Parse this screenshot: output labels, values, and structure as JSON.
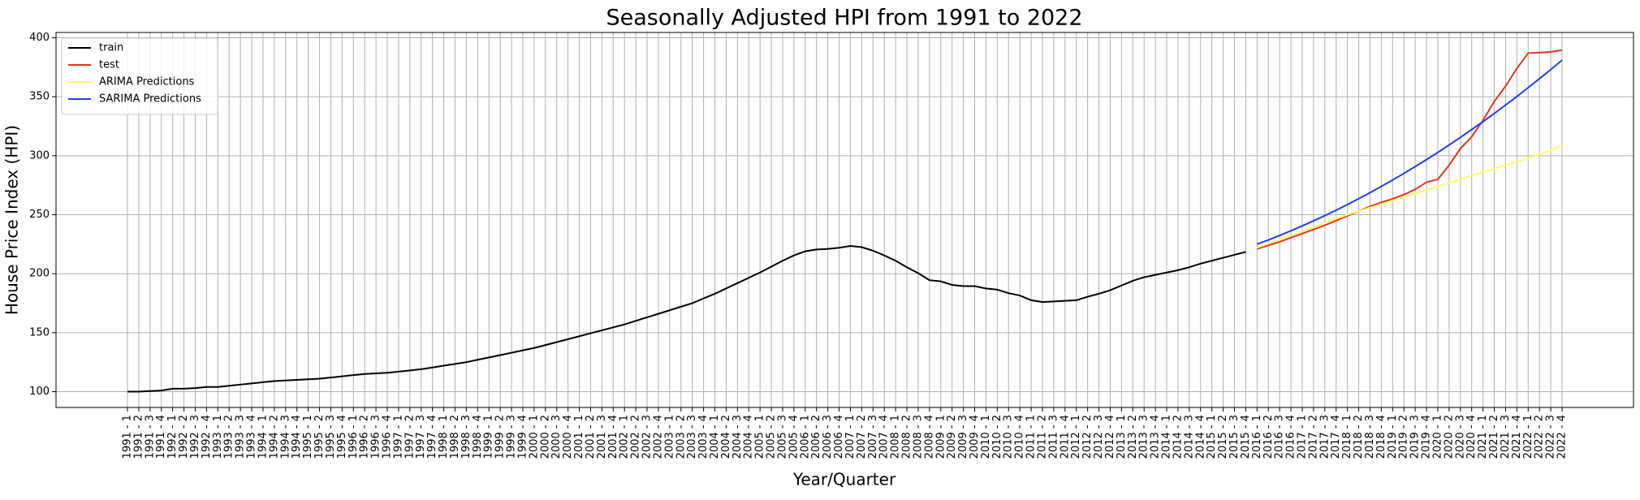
{
  "chart_data": {
    "type": "line",
    "title": "Seasonally Adjusted HPI from 1991 to 2022",
    "x_label": "Year/Quarter",
    "y_label": "House Price Index (HPI)",
    "categories": [
      "1991 - 1",
      "1991 - 2",
      "1991 - 3",
      "1991 - 4",
      "1992 - 1",
      "1992 - 2",
      "1992 - 3",
      "1992 - 4",
      "1993 - 1",
      "1993 - 2",
      "1993 - 3",
      "1993 - 4",
      "1994 - 1",
      "1994 - 2",
      "1994 - 3",
      "1994 - 4",
      "1995 - 1",
      "1995 - 2",
      "1995 - 3",
      "1995 - 4",
      "1996 - 1",
      "1996 - 2",
      "1996 - 3",
      "1996 - 4",
      "1997 - 1",
      "1997 - 2",
      "1997 - 3",
      "1997 - 4",
      "1998 - 1",
      "1998 - 2",
      "1998 - 3",
      "1998 - 4",
      "1999 - 1",
      "1999 - 2",
      "1999 - 3",
      "1999 - 4",
      "2000 - 1",
      "2000 - 2",
      "2000 - 3",
      "2000 - 4",
      "2001 - 1",
      "2001 - 2",
      "2001 - 3",
      "2001 - 4",
      "2002 - 1",
      "2002 - 2",
      "2002 - 3",
      "2002 - 4",
      "2003 - 1",
      "2003 - 2",
      "2003 - 3",
      "2003 - 4",
      "2004 - 1",
      "2004 - 2",
      "2004 - 3",
      "2004 - 4",
      "2005 - 1",
      "2005 - 2",
      "2005 - 3",
      "2005 - 4",
      "2006 - 1",
      "2006 - 2",
      "2006 - 3",
      "2006 - 4",
      "2007 - 1",
      "2007 - 2",
      "2007 - 3",
      "2007 - 4",
      "2008 - 1",
      "2008 - 2",
      "2008 - 3",
      "2008 - 4",
      "2009 - 1",
      "2009 - 2",
      "2009 - 3",
      "2009 - 4",
      "2010 - 1",
      "2010 - 2",
      "2010 - 3",
      "2010 - 4",
      "2011 - 1",
      "2011 - 2",
      "2011 - 3",
      "2011 - 4",
      "2012 - 1",
      "2012 - 2",
      "2012 - 3",
      "2012 - 4",
      "2013 - 1",
      "2013 - 2",
      "2013 - 3",
      "2013 - 4",
      "2014 - 1",
      "2014 - 2",
      "2014 - 3",
      "2014 - 4",
      "2015 - 1",
      "2015 - 2",
      "2015 - 3",
      "2015 - 4",
      "2016 - 1",
      "2016 - 2",
      "2016 - 3",
      "2016 - 4",
      "2017 - 1",
      "2017 - 2",
      "2017 - 3",
      "2017 - 4",
      "2018 - 1",
      "2018 - 2",
      "2018 - 3",
      "2018 - 4",
      "2019 - 1",
      "2019 - 2",
      "2019 - 3",
      "2019 - 4",
      "2020 - 1",
      "2020 - 2",
      "2020 - 3",
      "2020 - 4",
      "2021 - 1",
      "2021 - 2",
      "2021 - 3",
      "2021 - 4",
      "2022 - 1",
      "2022 - 2",
      "2022 - 3",
      "2022 - 4"
    ],
    "series": [
      {
        "name": "train",
        "color": "#000000",
        "values": [
          100,
          100,
          100.5,
          101,
          102.5,
          102.5,
          103,
          104,
          104,
          105,
          106,
          107,
          108,
          109,
          109.5,
          110,
          110.5,
          111,
          112,
          113,
          114,
          115,
          115.5,
          116,
          117,
          118,
          119,
          120.5,
          122,
          123.5,
          125,
          127,
          129,
          131,
          133,
          135,
          137,
          139.5,
          142,
          144.5,
          147,
          149.5,
          152,
          154.5,
          157,
          160,
          163,
          166,
          169,
          172,
          175,
          179,
          183,
          187.5,
          192,
          196.5,
          201,
          206,
          211,
          215.5,
          219,
          220.5,
          221,
          222,
          223.5,
          222.5,
          219.5,
          215.5,
          211,
          205.5,
          200.5,
          194.5,
          193.5,
          190.5,
          189.5,
          189.5,
          187.5,
          186.5,
          183.5,
          181.5,
          177.5,
          176,
          176.5,
          177,
          177.5,
          180.5,
          183,
          186,
          190,
          194,
          197,
          199,
          201,
          203,
          205.5,
          208.5,
          211,
          213.5,
          216,
          218.5,
          null,
          null,
          null,
          null,
          null,
          null,
          null,
          null,
          null,
          null,
          null,
          null,
          null,
          null,
          null,
          null,
          null,
          null,
          null,
          null,
          null,
          null,
          null,
          null,
          null,
          null,
          null,
          null
        ]
      },
      {
        "name": "test",
        "color": "#e8321e",
        "values": [
          null,
          null,
          null,
          null,
          null,
          null,
          null,
          null,
          null,
          null,
          null,
          null,
          null,
          null,
          null,
          null,
          null,
          null,
          null,
          null,
          null,
          null,
          null,
          null,
          null,
          null,
          null,
          null,
          null,
          null,
          null,
          null,
          null,
          null,
          null,
          null,
          null,
          null,
          null,
          null,
          null,
          null,
          null,
          null,
          null,
          null,
          null,
          null,
          null,
          null,
          null,
          null,
          null,
          null,
          null,
          null,
          null,
          null,
          null,
          null,
          null,
          null,
          null,
          null,
          null,
          null,
          null,
          null,
          null,
          null,
          null,
          null,
          null,
          null,
          null,
          null,
          null,
          null,
          null,
          null,
          null,
          null,
          null,
          null,
          null,
          null,
          null,
          null,
          null,
          null,
          null,
          null,
          null,
          null,
          null,
          null,
          null,
          null,
          null,
          null,
          221,
          224,
          227,
          230.5,
          234,
          237.5,
          241,
          245,
          249,
          253,
          257,
          260.5,
          263.5,
          267,
          271.5,
          277.5,
          280,
          292,
          306,
          316,
          330,
          346,
          359,
          374,
          387,
          387.5,
          388,
          389.5
        ]
      },
      {
        "name": "ARIMA Predictions",
        "color": "#ffff66",
        "values": [
          null,
          null,
          null,
          null,
          null,
          null,
          null,
          null,
          null,
          null,
          null,
          null,
          null,
          null,
          null,
          null,
          null,
          null,
          null,
          null,
          null,
          null,
          null,
          null,
          null,
          null,
          null,
          null,
          null,
          null,
          null,
          null,
          null,
          null,
          null,
          null,
          null,
          null,
          null,
          null,
          null,
          null,
          null,
          null,
          null,
          null,
          null,
          null,
          null,
          null,
          null,
          null,
          null,
          null,
          null,
          null,
          null,
          null,
          null,
          null,
          null,
          null,
          null,
          null,
          null,
          null,
          null,
          null,
          null,
          null,
          null,
          null,
          null,
          null,
          null,
          null,
          null,
          null,
          null,
          null,
          null,
          null,
          null,
          null,
          null,
          null,
          null,
          null,
          null,
          null,
          null,
          null,
          null,
          null,
          null,
          null,
          null,
          null,
          null,
          null,
          222,
          225.5,
          229,
          232.5,
          236,
          239.5,
          243,
          246.5,
          250,
          253,
          256,
          259,
          262,
          265,
          268,
          271,
          274,
          277,
          280,
          283,
          286,
          289,
          292,
          295,
          298,
          301,
          304.5,
          309
        ]
      },
      {
        "name": "SARIMA Predictions",
        "color": "#1f3ff0",
        "values": [
          null,
          null,
          null,
          null,
          null,
          null,
          null,
          null,
          null,
          null,
          null,
          null,
          null,
          null,
          null,
          null,
          null,
          null,
          null,
          null,
          null,
          null,
          null,
          null,
          null,
          null,
          null,
          null,
          null,
          null,
          null,
          null,
          null,
          null,
          null,
          null,
          null,
          null,
          null,
          null,
          null,
          null,
          null,
          null,
          null,
          null,
          null,
          null,
          null,
          null,
          null,
          null,
          null,
          null,
          null,
          null,
          null,
          null,
          null,
          null,
          null,
          null,
          null,
          null,
          null,
          null,
          null,
          null,
          null,
          null,
          null,
          null,
          null,
          null,
          null,
          null,
          null,
          null,
          null,
          null,
          null,
          null,
          null,
          null,
          null,
          null,
          null,
          null,
          null,
          null,
          null,
          null,
          null,
          null,
          null,
          null,
          null,
          null,
          null,
          null,
          225,
          228.6,
          232.4,
          236.4,
          240.5,
          244.8,
          249.2,
          253.8,
          258.6,
          263.6,
          268.7,
          274,
          279.4,
          285,
          290.8,
          296.7,
          302.8,
          309.1,
          315.5,
          322.2,
          328.9,
          335.8,
          343,
          350.2,
          357.7,
          365.3,
          373,
          381
        ]
      }
    ],
    "ylim": [
      86.6,
      404.5
    ],
    "yticks": [
      100,
      150,
      200,
      250,
      300,
      350,
      400
    ],
    "grid": true,
    "legend": "upper left"
  }
}
